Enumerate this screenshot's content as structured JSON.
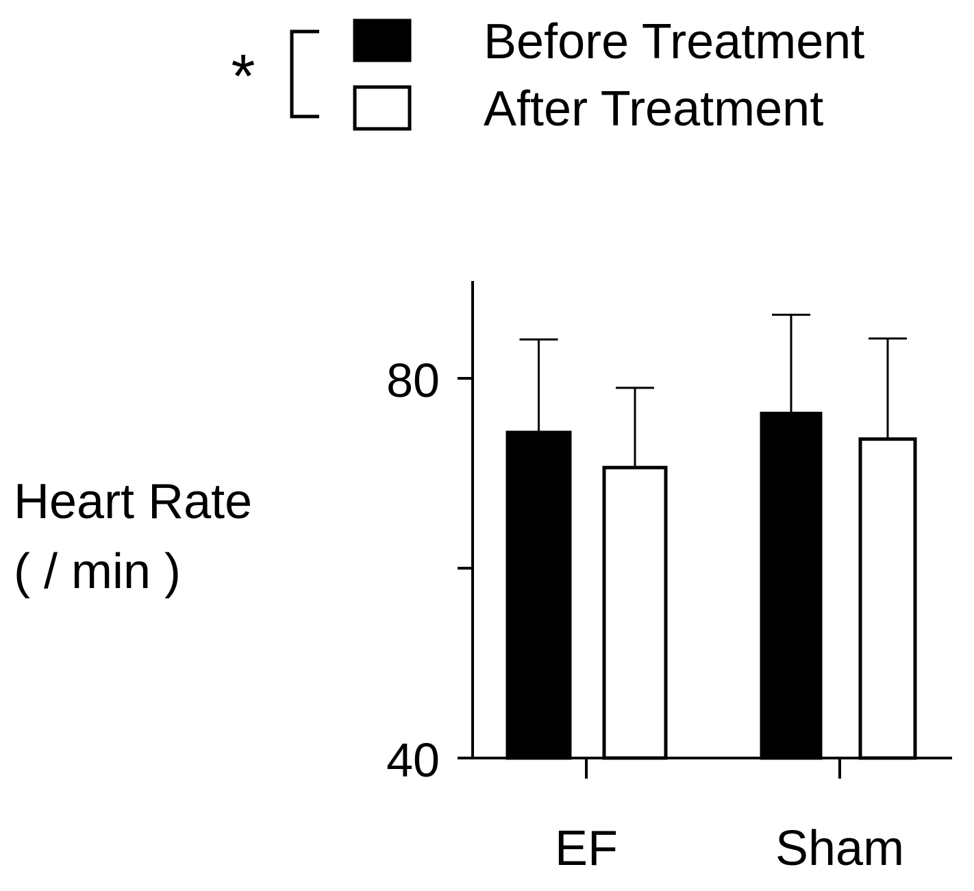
{
  "chart_data": {
    "type": "bar",
    "title": "",
    "xlabel": "",
    "ylabel_lines": [
      "Heart Rate",
      "( / min )"
    ],
    "categories": [
      "EF",
      "Sham"
    ],
    "series": [
      {
        "name": "Before Treatment",
        "fill": "#000000",
        "values": [
          74.3,
          76.3
        ],
        "error_plus": [
          9.8,
          10.4
        ]
      },
      {
        "name": "After Treatment",
        "fill": "#ffffff",
        "values": [
          70.6,
          73.6
        ],
        "error_plus": [
          8.4,
          10.6
        ]
      }
    ],
    "ylim": [
      40,
      90
    ],
    "yticks": [
      40,
      60,
      80
    ],
    "ytick_labels": [
      "40",
      "",
      "80"
    ],
    "grid": false,
    "legend": {
      "position": "top-right",
      "significance_marker": "*",
      "bracket": true
    }
  },
  "colors": {
    "axis": "#000000",
    "before_fill": "#000000",
    "after_fill": "#ffffff",
    "background": "#ffffff"
  }
}
